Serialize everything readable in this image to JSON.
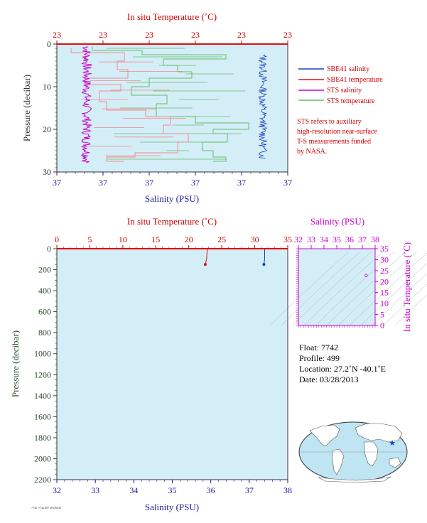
{
  "colors": {
    "panel_bg": "#d4eef8",
    "temperature_axis": "#cc0000",
    "salinity_axis": "#1a1a9a",
    "pressure_axis": "#333333",
    "deep_pressure_axis": "#2e4a2e",
    "sbe41_salinity": "#1f3fbf",
    "sbe41_temperature": "#dd1111",
    "sts_salinity": "#cc00cc",
    "sts_temperature": "#66bb66",
    "sts_temperature_light": "#f08a8a",
    "ts_axis": "#cc00cc"
  },
  "top_panel": {
    "top_axis_title": "In situ Temperature (˚C)",
    "top_ticks": [
      "23",
      "23",
      "23",
      "23",
      "23",
      "23"
    ],
    "left_axis_title": "Pressure (decibar)",
    "left_ticks": [
      "0",
      "10",
      "20",
      "30"
    ],
    "bottom_axis_title": "Salinity (PSU)",
    "bottom_ticks": [
      "37",
      "37",
      "37",
      "37",
      "37",
      "37"
    ]
  },
  "legend": {
    "items": [
      {
        "label": "SBE41 salinity",
        "color": "#1f3fbf"
      },
      {
        "label": "SBE41 temperature",
        "color": "#dd1111"
      },
      {
        "label": "STS salinity",
        "color": "#cc00cc"
      },
      {
        "label": "STS temperature",
        "color": "#66bb66"
      }
    ],
    "note": [
      "STS refers to auxiliary",
      "high-resolution near-surface",
      "T-S measurements funded",
      "by NASA."
    ]
  },
  "main_panel": {
    "top_axis_title": "In situ Temperature (˚C)",
    "top_ticks": [
      "0",
      "5",
      "10",
      "15",
      "20",
      "25",
      "30",
      "35"
    ],
    "left_axis_title": "Pressure (decibar)",
    "left_ticks": [
      "0",
      "200",
      "400",
      "600",
      "800",
      "1000",
      "1200",
      "1400",
      "1600",
      "1800",
      "2000",
      "2200"
    ],
    "bottom_axis_title": "Salinity (PSU)",
    "bottom_ticks": [
      "32",
      "33",
      "34",
      "35",
      "36",
      "37",
      "38"
    ]
  },
  "ts_panel": {
    "top_axis_title": "Salinity (PSU)",
    "top_ticks": [
      "32",
      "33",
      "34",
      "35",
      "36",
      "37",
      "38"
    ],
    "right_axis_title": "In situ Temperature (˚C)",
    "right_ticks": [
      "0",
      "5",
      "10",
      "15",
      "20",
      "25",
      "30",
      "35"
    ]
  },
  "float_info": {
    "float": "Float:  7742",
    "profile": "Profile:  499",
    "location": "Location:  27.2˚N  -40.1˚E",
    "date": "Date:  03/28/2013"
  },
  "footer_text": "7742 /7742.007 20130328",
  "chart_data": [
    {
      "type": "line",
      "panel": "top",
      "x_axis": "Salinity (PSU) / In situ Temperature (˚C)",
      "ylabel": "Pressure (decibar)",
      "ylim": [
        30,
        0
      ],
      "series": [
        {
          "name": "SBE41 salinity",
          "pressure": [
            3,
            5,
            7,
            9,
            11,
            13,
            15,
            17,
            19,
            21,
            23,
            25,
            27
          ]
        },
        {
          "name": "SBE41 temperature",
          "pressure": [
            0,
            30
          ]
        },
        {
          "name": "STS salinity",
          "pressure": [
            1,
            3,
            5,
            8,
            10,
            12,
            14,
            16,
            18,
            20,
            22,
            24,
            26,
            27.5
          ]
        },
        {
          "name": "STS temperature",
          "pressure": [
            1,
            3,
            5,
            7,
            9,
            11,
            13,
            15,
            17,
            19,
            21,
            23,
            25,
            27
          ]
        }
      ]
    },
    {
      "type": "line",
      "panel": "main",
      "xlabel": "Salinity (PSU)",
      "x2label": "In situ Temperature (˚C)",
      "ylabel": "Pressure (decibar)",
      "xlim": [
        32,
        38
      ],
      "x2lim": [
        0,
        35
      ],
      "ylim": [
        2200,
        0
      ],
      "series": [
        {
          "name": "SBE41 temperature",
          "x2": [
            22.8,
            22.7,
            22.5
          ],
          "pressure": [
            0,
            100,
            150
          ]
        },
        {
          "name": "SBE41 salinity",
          "x": [
            37.4,
            37.4,
            37.38
          ],
          "pressure": [
            0,
            100,
            150
          ]
        }
      ]
    },
    {
      "type": "scatter",
      "panel": "ts",
      "xlabel": "Salinity (PSU)",
      "ylabel": "In situ Temperature (˚C)",
      "xlim": [
        32,
        38
      ],
      "ylim": [
        0,
        35
      ],
      "points": [
        {
          "x": 37.3,
          "y": 22.8
        }
      ]
    }
  ]
}
